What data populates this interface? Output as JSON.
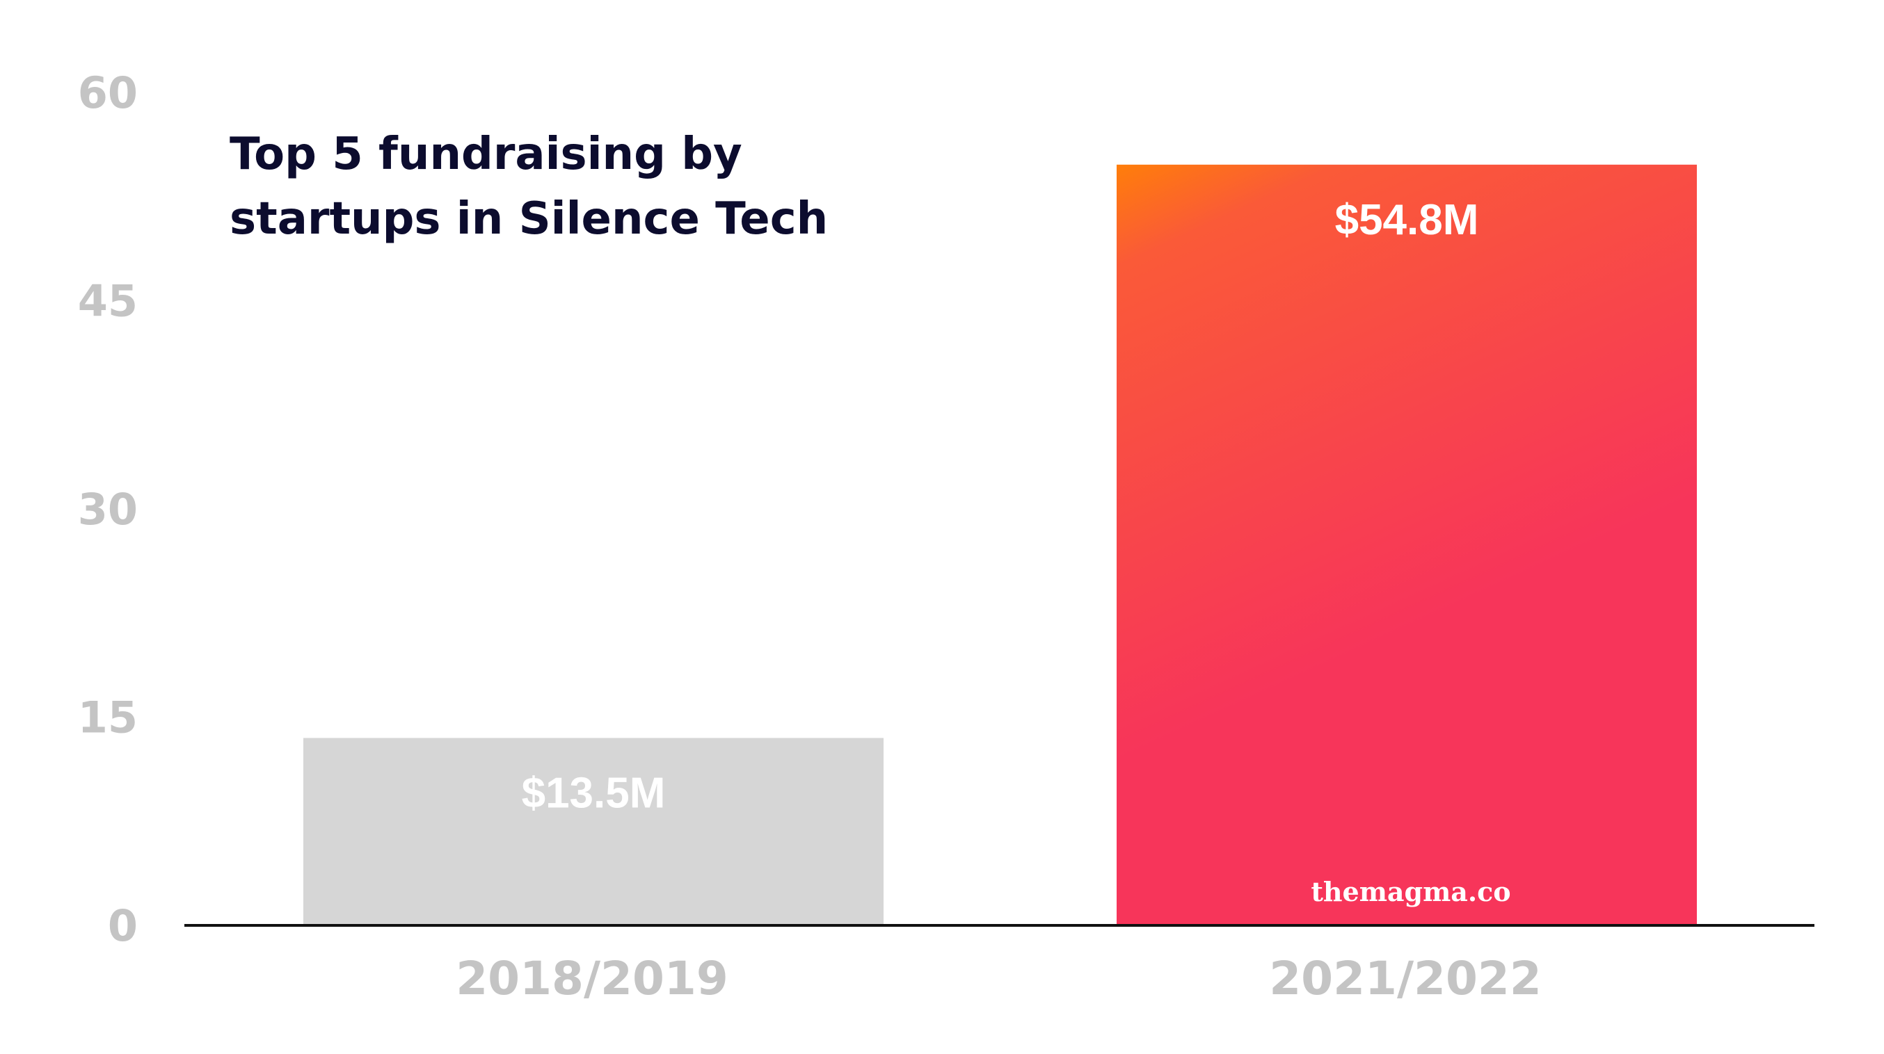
{
  "chart_data": {
    "type": "bar",
    "title_lines": [
      "Top 5 fundraising by",
      "startups in Silence Tech"
    ],
    "categories": [
      "2018/2019",
      "2021/2022"
    ],
    "values": [
      13.5,
      54.8
    ],
    "data_labels": [
      "$13.5M",
      "$54.8M"
    ],
    "yticks": [
      0,
      15,
      30,
      45,
      60
    ],
    "ylim": [
      0,
      60
    ],
    "xlabel": "",
    "ylabel": "",
    "grid": false,
    "bar_colors": [
      "#d6d6d6",
      "gradient:#ff7a00-#f7355a"
    ],
    "watermark": "themagma.co"
  },
  "colors": {
    "grey_bar": "#d6d6d6",
    "gradient_top": "#ff7e0a",
    "gradient_mid": "#fa5a38",
    "gradient_bottom": "#f7355a",
    "tick_text": "#c4c4c4",
    "title_text": "#0c0c2e",
    "axis_line": "#111111"
  }
}
